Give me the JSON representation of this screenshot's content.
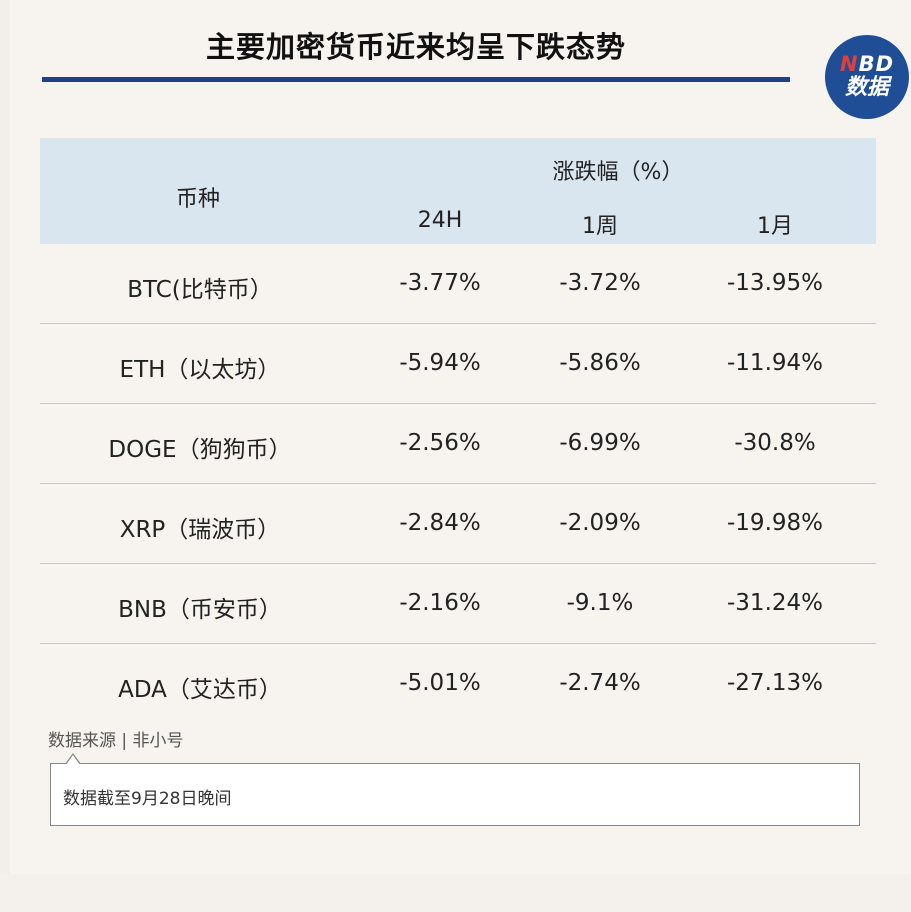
{
  "title": "主要加密货币近来均呈下跌态势",
  "logo": {
    "top_n": "N",
    "top_rest": "BD",
    "bottom": "数据"
  },
  "table": {
    "col_currency": "币种",
    "col_group": "涨跌幅（%）",
    "col_24h": "24H",
    "col_1w": "1周",
    "col_1m": "1月",
    "rows": [
      {
        "name": "BTC(比特币）",
        "h24": "-3.77%",
        "w1": "-3.72%",
        "m1": "-13.95%"
      },
      {
        "name": "ETH（以太坊）",
        "h24": "-5.94%",
        "w1": "-5.86%",
        "m1": "-11.94%"
      },
      {
        "name": "DOGE（狗狗币）",
        "h24": "-2.56%",
        "w1": "-6.99%",
        "m1": "-30.8%"
      },
      {
        "name": "XRP（瑞波币）",
        "h24": "-2.84%",
        "w1": "-2.09%",
        "m1": "-19.98%"
      },
      {
        "name": "BNB（币安币）",
        "h24": "-2.16%",
        "w1": "-9.1%",
        "m1": "-31.24%"
      },
      {
        "name": "ADA（艾达币）",
        "h24": "-5.01%",
        "w1": "-2.74%",
        "m1": "-27.13%"
      }
    ]
  },
  "source": "数据来源 | 非小号",
  "note": "数据截至9月28日晚间",
  "colors": {
    "title_rule": "#1f3f86",
    "header_bg": "#d9e6f0",
    "logo_bg": "#1f4e96",
    "logo_accent": "#e0403a"
  }
}
